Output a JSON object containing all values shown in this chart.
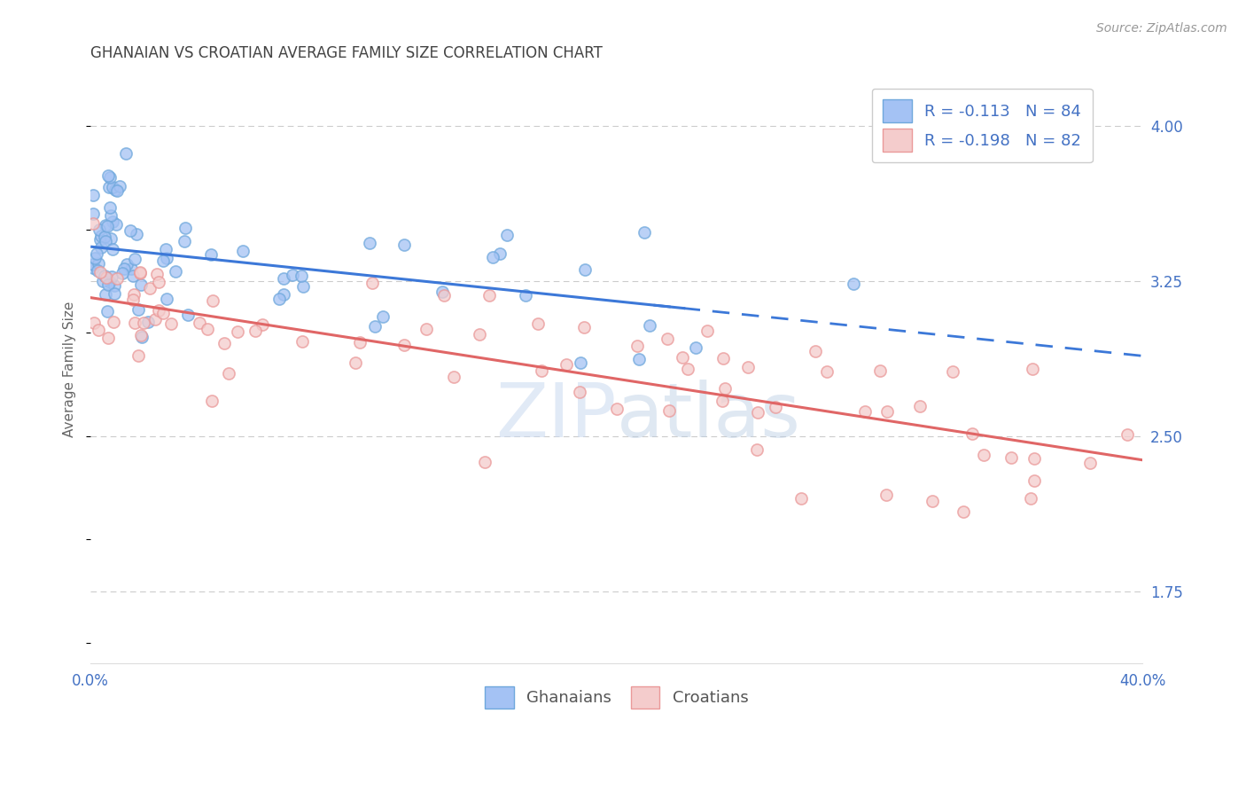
{
  "title": "GHANAIAN VS CROATIAN AVERAGE FAMILY SIZE CORRELATION CHART",
  "source_text": "Source: ZipAtlas.com",
  "ylabel": "Average Family Size",
  "watermark_zip": "ZIP",
  "watermark_atlas": "atlas",
  "legend_blue_label": "R = -0.113   N = 84",
  "legend_pink_label": "R = -0.198   N = 82",
  "xlim": [
    0.0,
    0.4
  ],
  "ylim": [
    1.4,
    4.25
  ],
  "yticks": [
    1.75,
    2.5,
    3.25,
    4.0
  ],
  "xticks": [
    0.0,
    0.1,
    0.2,
    0.3,
    0.4
  ],
  "xticklabels": [
    "0.0%",
    "",
    "",
    "",
    "40.0%"
  ],
  "color_blue_fill": "#a4c2f4",
  "color_blue_edge": "#6fa8dc",
  "color_pink_fill": "#f4cccc",
  "color_pink_edge": "#ea9999",
  "color_trend_blue": "#3c78d8",
  "color_trend_pink": "#e06666",
  "color_axis_text": "#4472c4",
  "color_grid": "#cccccc",
  "color_ylabel": "#666666",
  "background_color": "#ffffff",
  "title_color": "#434343",
  "source_color": "#999999"
}
